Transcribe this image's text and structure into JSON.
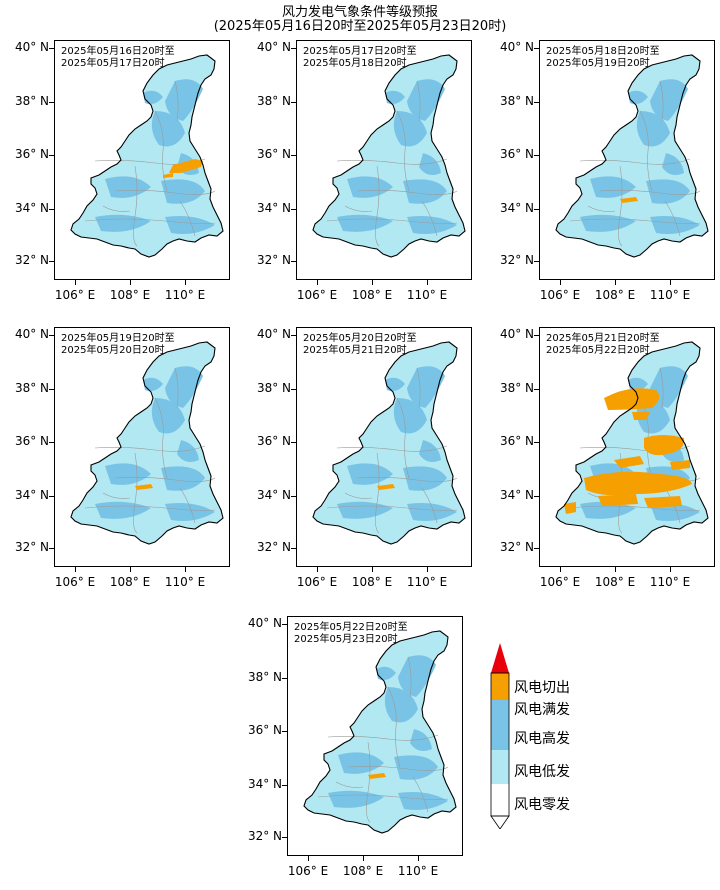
{
  "title": {
    "line1": "风力发电气象条件等级预报",
    "line2": "(2025年05月16日20时至2025年05月23日20时)"
  },
  "axes": {
    "y_ticks": [
      "40° N",
      "38° N",
      "36° N",
      "34° N",
      "32° N"
    ],
    "x_ticks": [
      "106° E",
      "108° E",
      "110° E"
    ]
  },
  "panels": [
    {
      "line1": "2025年05月16日20时至",
      "line2": "2025年05月17日20时",
      "full_level": "low"
    },
    {
      "line1": "2025年05月17日20时至",
      "line2": "2025年05月18日20时",
      "full_level": "none"
    },
    {
      "line1": "2025年05月18日20时至",
      "line2": "2025年05月19日20时",
      "full_level": "trace"
    },
    {
      "line1": "2025年05月19日20时至",
      "line2": "2025年05月20日20时",
      "full_level": "trace"
    },
    {
      "line1": "2025年05月20日20时至",
      "line2": "2025年05月21日20时",
      "full_level": "trace"
    },
    {
      "line1": "2025年05月21日20时至",
      "line2": "2025年05月22日20时",
      "full_level": "high"
    },
    {
      "line1": "2025年05月22日20时至",
      "line2": "2025年05月23日20时",
      "full_level": "trace"
    }
  ],
  "legend": {
    "items": [
      {
        "label": "风电切出",
        "color": "#e8000b"
      },
      {
        "label": "风电满发",
        "color": "#f5a000"
      },
      {
        "label": "风电高发",
        "color": "#79c4e6"
      },
      {
        "label": "风电低发",
        "color": "#b2e8f2"
      },
      {
        "label": "风电零发",
        "color": "#ffffff"
      }
    ]
  },
  "colors": {
    "province_low": "#b2e8f2",
    "province_high": "#79c4e6",
    "full_output": "#f5a000",
    "cutout": "#e8000b",
    "county_lines": "#999999"
  }
}
